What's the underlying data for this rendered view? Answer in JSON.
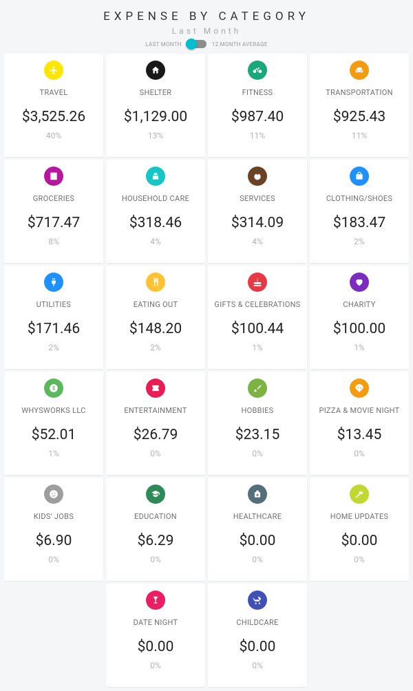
{
  "header": {
    "title": "EXPENSE BY CATEGORY",
    "subtitle": "Last Month",
    "toggle_left": "LAST MONTH",
    "toggle_right": "12 MONTH AVERAGE",
    "toggle_state": "left",
    "toggle_active_color": "#00bfcf"
  },
  "layout": {
    "background": "#f5f6f7",
    "card_background": "#ffffff",
    "columns": 4
  },
  "categories": [
    {
      "name": "TRAVEL",
      "amount": "$3,525.26",
      "percent": "40%",
      "icon": "plane",
      "color": "#ffe600"
    },
    {
      "name": "SHELTER",
      "amount": "$1,129.00",
      "percent": "13%",
      "icon": "home",
      "color": "#1a1a1a"
    },
    {
      "name": "FITNESS",
      "amount": "$987.40",
      "percent": "11%",
      "icon": "bike",
      "color": "#1aa87a"
    },
    {
      "name": "TRANSPORTATION",
      "amount": "$925.43",
      "percent": "11%",
      "icon": "car",
      "color": "#f39c12"
    },
    {
      "name": "GROCERIES",
      "amount": "$717.47",
      "percent": "8%",
      "icon": "list",
      "color": "#b5179e"
    },
    {
      "name": "HOUSEHOLD CARE",
      "amount": "$318.46",
      "percent": "4%",
      "icon": "soap",
      "color": "#16c6c6"
    },
    {
      "name": "SERVICES",
      "amount": "$314.09",
      "percent": "4%",
      "icon": "hands",
      "color": "#6b4226"
    },
    {
      "name": "CLOTHING/SHOES",
      "amount": "$183.47",
      "percent": "2%",
      "icon": "bag",
      "color": "#1e90ff"
    },
    {
      "name": "UTILITIES",
      "amount": "$171.46",
      "percent": "2%",
      "icon": "plug",
      "color": "#1e90ff"
    },
    {
      "name": "EATING OUT",
      "amount": "$148.20",
      "percent": "2%",
      "icon": "utensils",
      "color": "#ffc233"
    },
    {
      "name": "GIFTS & CELEBRATIONS",
      "amount": "$100.44",
      "percent": "1%",
      "icon": "cake",
      "color": "#e63946"
    },
    {
      "name": "CHARITY",
      "amount": "$100.00",
      "percent": "1%",
      "icon": "heart",
      "color": "#7b2cbf"
    },
    {
      "name": "WHYSWORKS LLC",
      "amount": "$52.01",
      "percent": "1%",
      "icon": "dollar",
      "color": "#5cb85c"
    },
    {
      "name": "ENTERTAINMENT",
      "amount": "$26.79",
      "percent": "0%",
      "icon": "ticket",
      "color": "#e71d53"
    },
    {
      "name": "HOBBIES",
      "amount": "$23.15",
      "percent": "0%",
      "icon": "brush",
      "color": "#7cb342"
    },
    {
      "name": "PIZZA & MOVIE NIGHT",
      "amount": "$13.45",
      "percent": "0%",
      "icon": "pizza",
      "color": "#f39c12"
    },
    {
      "name": "KIDS' JOBS",
      "amount": "$6.90",
      "percent": "0%",
      "icon": "face",
      "color": "#9e9e9e"
    },
    {
      "name": "EDUCATION",
      "amount": "$6.29",
      "percent": "0%",
      "icon": "grad",
      "color": "#2e8b57"
    },
    {
      "name": "HEALTHCARE",
      "amount": "$0.00",
      "percent": "0%",
      "icon": "med",
      "color": "#546e7a"
    },
    {
      "name": "HOME UPDATES",
      "amount": "$0.00",
      "percent": "0%",
      "icon": "wrench",
      "color": "#c0d82f"
    },
    {
      "name": "DATE NIGHT",
      "amount": "$0.00",
      "percent": "0%",
      "icon": "glass",
      "color": "#e91e63"
    },
    {
      "name": "CHILDCARE",
      "amount": "$0.00",
      "percent": "0%",
      "icon": "stroller",
      "color": "#3f51b5"
    }
  ]
}
